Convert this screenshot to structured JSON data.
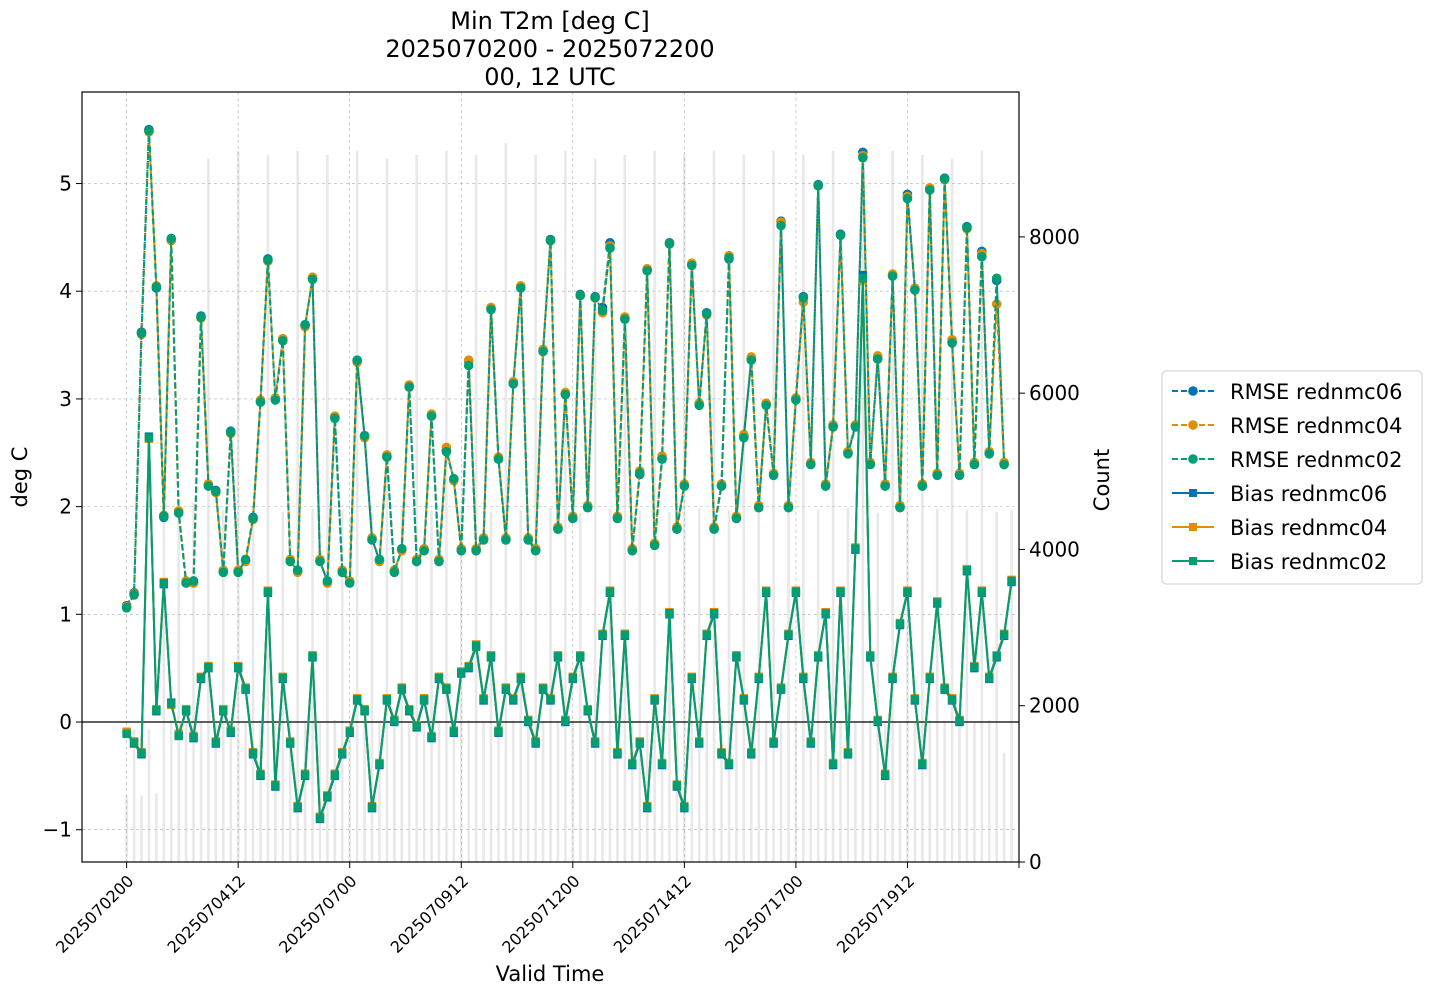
{
  "chart_data": {
    "type": "line",
    "title": [
      "Min T2m [deg C]",
      "2025070200 - 2025072200",
      "00, 12 UTC"
    ],
    "xlabel": "Valid Time",
    "ylabel": "deg C",
    "ylabel_right": "Count",
    "xlim": [
      -4,
      80
    ],
    "ylim": [
      -1.3,
      5.85
    ],
    "ylim_right": [
      0,
      9854
    ],
    "x_ticks": [
      0,
      10,
      20,
      30,
      40,
      50,
      60,
      70,
      80
    ],
    "x_tick_labels": [
      "2025070200",
      "2025070412",
      "2025070700",
      "2025070912",
      "2025071200",
      "2025071412",
      "2025071700",
      "2025071912",
      ""
    ],
    "y_ticks": [
      -1,
      0,
      1,
      2,
      3,
      4,
      5
    ],
    "y_ticks_right": [
      0,
      2000,
      4000,
      6000,
      8000
    ],
    "grid": true,
    "zero_line": 0,
    "legend_position": "outside-right",
    "series": [
      {
        "name": "RMSE rednmc06",
        "color": "#0173b2",
        "linestyle": "dashed",
        "marker": "circle",
        "values": [
          1.08,
          1.2,
          3.62,
          5.5,
          4.03,
          1.9,
          4.48,
          1.95,
          1.3,
          1.3,
          3.77,
          2.2,
          2.15,
          1.4,
          2.7,
          1.4,
          1.5,
          1.9,
          2.98,
          4.3,
          3.0,
          3.55,
          1.5,
          1.4,
          3.68,
          4.12,
          1.5,
          1.3,
          2.83,
          1.4,
          1.3,
          3.35,
          2.65,
          1.7,
          1.5,
          2.47,
          1.4,
          1.6,
          3.12,
          1.5,
          1.6,
          2.85,
          1.5,
          2.52,
          2.25,
          1.6,
          3.35,
          1.6,
          1.7,
          3.84,
          2.45,
          1.7,
          3.15,
          4.04,
          1.7,
          1.6,
          3.45,
          4.48,
          1.8,
          3.05,
          1.9,
          3.97,
          2.0,
          3.95,
          3.85,
          4.45,
          1.9,
          3.75,
          1.6,
          2.3,
          4.2,
          1.65,
          2.45,
          4.45,
          1.8,
          2.2,
          4.25,
          2.95,
          3.8,
          1.8,
          2.2,
          4.3,
          1.9,
          2.65,
          3.37,
          2.0,
          2.95,
          2.3,
          4.65,
          2.0,
          3.0,
          3.95,
          2.4,
          4.99,
          2.2,
          2.75,
          4.53,
          2.5,
          2.75,
          5.29,
          2.4,
          3.38,
          2.2,
          4.15,
          2.0,
          4.9,
          4.02,
          2.2,
          4.95,
          2.3,
          5.05,
          3.53,
          2.3,
          4.6,
          2.4,
          4.37,
          2.5,
          4.1,
          2.4
        ]
      },
      {
        "name": "RMSE rednmc04",
        "color": "#de8f05",
        "linestyle": "dashed",
        "marker": "circle",
        "values": [
          1.07,
          1.19,
          3.6,
          5.48,
          4.05,
          1.92,
          4.47,
          1.96,
          1.31,
          1.29,
          3.75,
          2.21,
          2.13,
          1.41,
          2.68,
          1.41,
          1.49,
          1.88,
          2.99,
          4.28,
          3.01,
          3.56,
          1.51,
          1.39,
          3.67,
          4.13,
          1.51,
          1.29,
          2.84,
          1.41,
          1.31,
          3.34,
          2.64,
          1.71,
          1.49,
          2.48,
          1.41,
          1.59,
          3.13,
          1.51,
          1.61,
          2.86,
          1.51,
          2.55,
          2.24,
          1.61,
          3.36,
          1.61,
          1.71,
          3.85,
          2.46,
          1.71,
          3.16,
          4.05,
          1.71,
          1.61,
          3.46,
          4.47,
          1.81,
          3.06,
          1.91,
          3.96,
          2.01,
          3.94,
          3.8,
          4.42,
          1.91,
          3.76,
          1.61,
          2.33,
          4.21,
          1.66,
          2.47,
          4.44,
          1.81,
          2.21,
          4.26,
          2.96,
          3.78,
          1.81,
          2.21,
          4.33,
          1.91,
          2.67,
          3.39,
          2.01,
          2.96,
          2.31,
          4.64,
          2.01,
          3.01,
          3.9,
          2.41,
          4.98,
          2.21,
          2.76,
          4.52,
          2.51,
          2.76,
          5.26,
          2.41,
          3.4,
          2.21,
          4.16,
          2.01,
          4.88,
          4.03,
          2.21,
          4.96,
          2.31,
          5.04,
          3.55,
          2.31,
          4.58,
          2.41,
          4.35,
          2.51,
          3.88,
          2.41
        ]
      },
      {
        "name": "RMSE rednmc02",
        "color": "#029e73",
        "linestyle": "dashed",
        "marker": "circle",
        "values": [
          1.06,
          1.18,
          3.61,
          5.49,
          4.04,
          1.91,
          4.49,
          1.94,
          1.29,
          1.31,
          3.76,
          2.19,
          2.14,
          1.39,
          2.69,
          1.39,
          1.51,
          1.89,
          2.97,
          4.29,
          2.99,
          3.54,
          1.49,
          1.41,
          3.69,
          4.11,
          1.49,
          1.31,
          2.82,
          1.39,
          1.29,
          3.36,
          2.66,
          1.69,
          1.51,
          2.46,
          1.39,
          1.61,
          3.11,
          1.49,
          1.59,
          2.84,
          1.49,
          2.51,
          2.26,
          1.59,
          3.31,
          1.59,
          1.69,
          3.83,
          2.44,
          1.69,
          3.14,
          4.03,
          1.69,
          1.59,
          3.44,
          4.47,
          1.79,
          3.04,
          1.89,
          3.96,
          1.99,
          3.94,
          3.82,
          4.4,
          1.89,
          3.74,
          1.59,
          2.31,
          4.19,
          1.64,
          2.44,
          4.44,
          1.79,
          2.19,
          4.24,
          2.94,
          3.79,
          1.79,
          2.19,
          4.31,
          1.89,
          2.64,
          3.36,
          1.99,
          2.94,
          2.29,
          4.61,
          1.99,
          2.99,
          3.94,
          2.39,
          4.98,
          2.19,
          2.74,
          4.52,
          2.49,
          2.74,
          5.24,
          2.39,
          3.37,
          2.19,
          4.14,
          1.99,
          4.86,
          4.01,
          2.19,
          4.94,
          2.29,
          5.04,
          3.52,
          2.29,
          4.59,
          2.39,
          4.32,
          2.49,
          4.12,
          2.39
        ]
      },
      {
        "name": "Bias rednmc06",
        "color": "#0173b2",
        "linestyle": "solid",
        "marker": "square",
        "values": [
          -0.1,
          -0.2,
          -0.3,
          2.65,
          0.1,
          1.28,
          0.18,
          -0.12,
          0.1,
          -0.15,
          0.4,
          0.5,
          -0.2,
          0.1,
          -0.1,
          0.5,
          0.3,
          -0.3,
          -0.5,
          1.2,
          -0.6,
          0.4,
          -0.2,
          -0.8,
          -0.5,
          0.6,
          -0.9,
          -0.7,
          -0.5,
          -0.3,
          -0.1,
          0.2,
          0.1,
          -0.8,
          -0.4,
          0.2,
          0.0,
          0.3,
          0.1,
          -0.05,
          0.2,
          -0.15,
          0.4,
          0.3,
          -0.1,
          0.45,
          0.5,
          0.7,
          0.2,
          0.6,
          -0.1,
          0.3,
          0.2,
          0.4,
          0.0,
          -0.2,
          0.3,
          0.2,
          0.6,
          0.0,
          0.4,
          0.6,
          0.1,
          -0.2,
          0.8,
          1.2,
          -0.3,
          0.8,
          -0.4,
          -0.2,
          -0.8,
          0.2,
          -0.4,
          1.0,
          -0.6,
          -0.8,
          0.4,
          -0.2,
          0.8,
          1.0,
          -0.3,
          -0.4,
          0.6,
          0.2,
          -0.3,
          0.4,
          1.2,
          -0.2,
          0.3,
          0.8,
          1.2,
          0.4,
          -0.2,
          0.6,
          1.0,
          -0.4,
          1.2,
          -0.3,
          1.6,
          4.15,
          0.6,
          0.0,
          -0.5,
          0.4,
          0.9,
          1.2,
          0.2,
          -0.4,
          0.4,
          1.1,
          0.3,
          0.2,
          0.0,
          1.4,
          0.5,
          1.2,
          0.4,
          0.6,
          0.8,
          1.3
        ]
      },
      {
        "name": "Bias rednmc04",
        "color": "#de8f05",
        "linestyle": "solid",
        "marker": "square",
        "values": [
          -0.09,
          -0.18,
          -0.28,
          2.63,
          0.12,
          1.3,
          0.16,
          -0.11,
          0.12,
          -0.13,
          0.42,
          0.52,
          -0.18,
          0.12,
          -0.08,
          0.52,
          0.32,
          -0.28,
          -0.48,
          1.22,
          -0.58,
          0.42,
          -0.18,
          -0.78,
          -0.48,
          0.62,
          -0.88,
          -0.68,
          -0.48,
          -0.28,
          -0.08,
          0.22,
          0.12,
          -0.78,
          -0.38,
          0.22,
          0.02,
          0.32,
          0.12,
          -0.03,
          0.22,
          -0.13,
          0.42,
          0.32,
          -0.08,
          0.47,
          0.52,
          0.72,
          0.22,
          0.62,
          -0.08,
          0.32,
          0.22,
          0.42,
          0.02,
          -0.18,
          0.32,
          0.22,
          0.62,
          0.02,
          0.42,
          0.62,
          0.12,
          -0.18,
          0.82,
          1.22,
          -0.28,
          0.82,
          -0.38,
          -0.18,
          -0.78,
          0.22,
          -0.38,
          1.02,
          -0.58,
          -0.78,
          0.42,
          -0.18,
          0.82,
          1.02,
          -0.28,
          -0.38,
          0.62,
          0.22,
          -0.28,
          0.42,
          1.22,
          -0.18,
          0.32,
          0.82,
          1.22,
          0.42,
          -0.18,
          0.62,
          1.02,
          -0.38,
          1.22,
          -0.28,
          1.62,
          4.1,
          0.62,
          0.02,
          -0.48,
          0.42,
          0.92,
          1.22,
          0.22,
          -0.38,
          0.42,
          1.12,
          0.32,
          0.22,
          0.02,
          1.42,
          0.52,
          1.22,
          0.42,
          0.62,
          0.82,
          1.32
        ]
      },
      {
        "name": "Bias rednmc02",
        "color": "#029e73",
        "linestyle": "solid",
        "marker": "square",
        "values": [
          -0.11,
          -0.19,
          -0.29,
          2.64,
          0.11,
          1.29,
          0.17,
          -0.13,
          0.11,
          -0.14,
          0.41,
          0.51,
          -0.19,
          0.11,
          -0.09,
          0.51,
          0.31,
          -0.29,
          -0.49,
          1.21,
          -0.59,
          0.41,
          -0.19,
          -0.79,
          -0.49,
          0.61,
          -0.89,
          -0.69,
          -0.49,
          -0.29,
          -0.09,
          0.21,
          0.11,
          -0.79,
          -0.39,
          0.21,
          0.01,
          0.31,
          0.11,
          -0.04,
          0.21,
          -0.14,
          0.41,
          0.31,
          -0.09,
          0.46,
          0.51,
          0.71,
          0.21,
          0.61,
          -0.09,
          0.31,
          0.21,
          0.41,
          0.01,
          -0.19,
          0.31,
          0.21,
          0.61,
          0.01,
          0.41,
          0.61,
          0.11,
          -0.19,
          0.81,
          1.21,
          -0.29,
          0.81,
          -0.39,
          -0.19,
          -0.79,
          0.21,
          -0.39,
          1.01,
          -0.59,
          -0.79,
          0.41,
          -0.19,
          0.81,
          1.01,
          -0.29,
          -0.39,
          0.61,
          0.21,
          -0.29,
          0.41,
          1.21,
          -0.19,
          0.31,
          0.81,
          1.21,
          0.41,
          -0.19,
          0.61,
          1.01,
          -0.39,
          1.21,
          -0.29,
          1.61,
          4.12,
          0.61,
          0.01,
          -0.49,
          0.41,
          0.91,
          1.21,
          0.21,
          -0.39,
          0.41,
          1.11,
          0.31,
          0.21,
          0.01,
          1.41,
          0.51,
          1.21,
          0.41,
          0.61,
          0.81,
          1.31
        ]
      }
    ],
    "count": {
      "name": "Count",
      "color": "#e8e8e8",
      "values": [
        850,
        1700,
        850,
        1700,
        880,
        4500,
        1820,
        4400,
        1790,
        4600,
        1800,
        9000,
        1780,
        4500,
        1810,
        9100,
        1800,
        4550,
        1820,
        9050,
        1790,
        4480,
        1810,
        9100,
        1800,
        4520,
        1790,
        9050,
        1820,
        4500,
        1800,
        9100,
        1790,
        4470,
        1810,
        9000,
        1820,
        4530,
        1790,
        9050,
        1800,
        4500,
        1810,
        9100,
        1790,
        4520,
        1820,
        9050,
        1800,
        4480,
        1790,
        9200,
        1810,
        4500,
        1820,
        9050,
        1800,
        4530,
        1790,
        9100,
        1810,
        4470,
        1820,
        9000,
        1790,
        4520,
        1800,
        9050,
        1810,
        4500,
        1790,
        9100,
        1820,
        4480,
        1800,
        9050,
        1810,
        4530,
        1790,
        9100,
        1820,
        4500,
        1800,
        9050,
        1790,
        4520,
        1810,
        9100,
        1800,
        4480,
        1820,
        9050,
        1790,
        4500,
        1810,
        9100,
        1800,
        4530,
        1790,
        9050,
        1820,
        4470,
        1810,
        9100,
        1800,
        4500,
        1790,
        9050,
        1820,
        4520,
        1810,
        9000,
        1800,
        4500,
        1790,
        9100,
        1820,
        4480,
        1400,
        4500
      ]
    }
  }
}
